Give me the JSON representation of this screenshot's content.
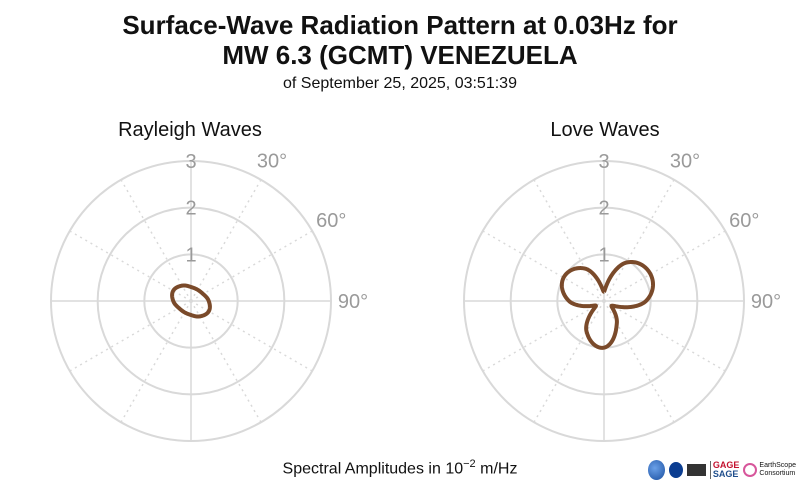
{
  "title_line1": "Surface-Wave Radiation Pattern at 0.03Hz for",
  "title_line2": "MW 6.3 (GCMT) VENEZUELA",
  "title_line3": "of September 25, 2025, 03:51:39",
  "footer": {
    "text": "Spectral Amplitudes in",
    "unit_base": "10",
    "unit_exp": "−2",
    "unit_suffix": "m/Hz"
  },
  "logos": [
    "nsf-logo",
    "nasa-logo",
    "usgs-logo",
    "gage-sage-logo",
    "earthscope-logo"
  ],
  "logo_texts": {
    "gage": "GAGE",
    "sage": "SAGE",
    "earthscope": "EarthScope",
    "consortium": "Consortium"
  },
  "colors": {
    "pattern": "#7a4a2a",
    "grid": "#d9d9d9",
    "tick": "#9a9a9a"
  },
  "chart_data": [
    {
      "type": "polar",
      "title": "Rayleigh Waves",
      "radial_ticks": [
        "1",
        "2",
        "3"
      ],
      "r_max": 3,
      "angle_ticks": [
        "30°",
        "60°",
        "90°"
      ],
      "theta_zero": "top",
      "theta_direction": "clockwise",
      "grid": true,
      "series": [
        {
          "amplitudes": [
            0.3,
            0.28,
            0.3,
            0.38,
            0.44,
            0.38,
            0.3,
            0.28,
            0.3,
            0.38,
            0.44,
            0.38
          ]
        }
      ]
    },
    {
      "type": "polar",
      "title": "Love Waves",
      "radial_ticks": [
        "1",
        "2",
        "3"
      ],
      "r_max": 3,
      "angle_ticks": [
        "30°",
        "60°",
        "90°"
      ],
      "theta_zero": "top",
      "theta_direction": "clockwise",
      "grid": true,
      "series": [
        {
          "amplitudes": [
            0.2,
            0.95,
            1.15,
            0.9,
            0.2,
            0.55,
            1.0,
            0.75,
            0.2,
            0.75,
            1.0,
            0.8
          ]
        }
      ]
    }
  ]
}
